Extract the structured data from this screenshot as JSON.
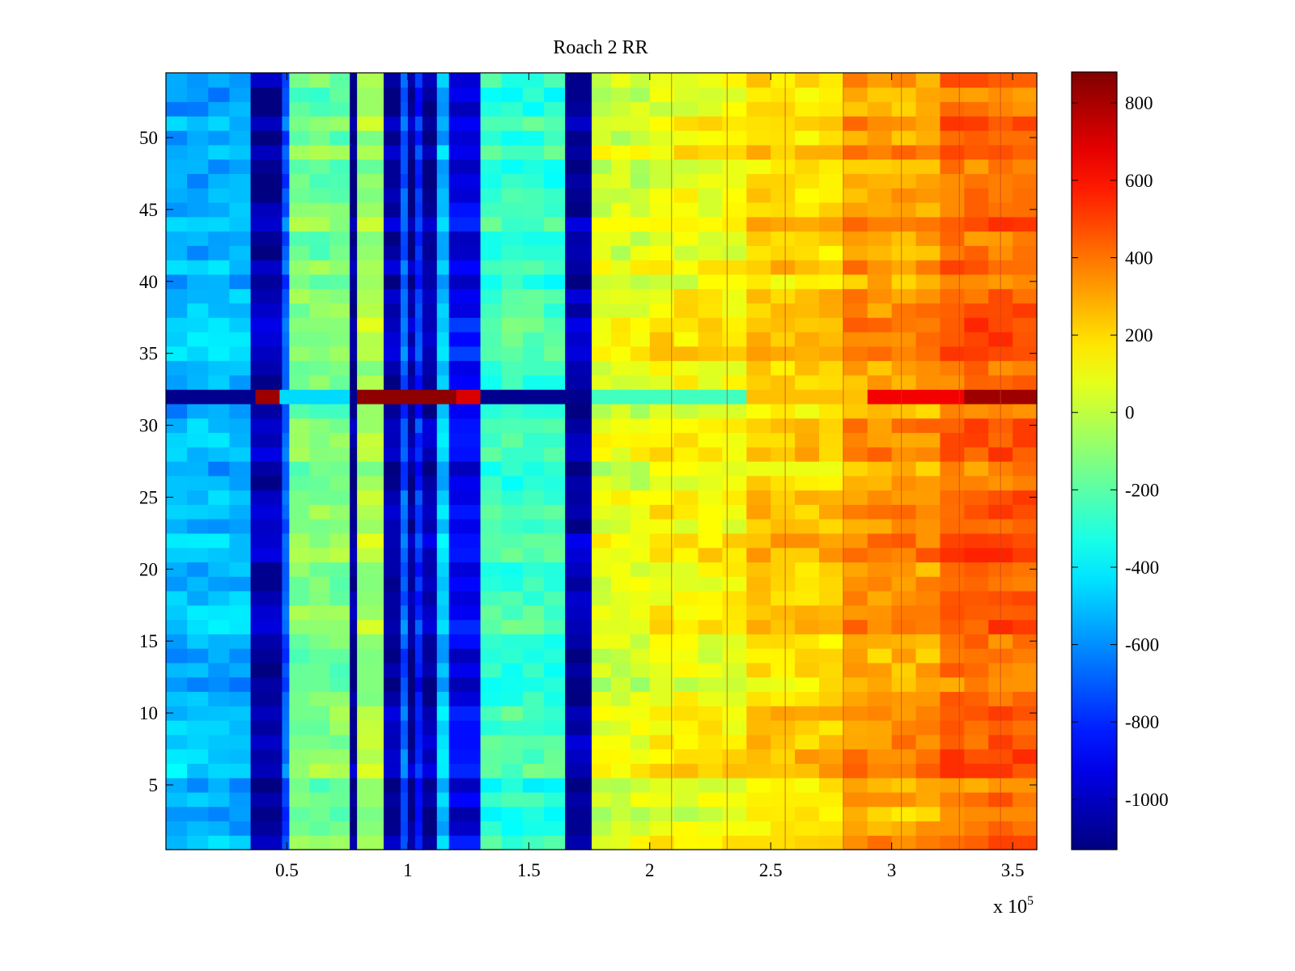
{
  "chart_data": {
    "type": "heatmap",
    "title": "Roach 2 RR",
    "xlabel": "",
    "ylabel": "",
    "x_exponent_label": "x 10",
    "x_exponent_power": "5",
    "xlim": [
      0,
      360000
    ],
    "ylim": [
      0.5,
      54.5
    ],
    "x_ticks": [
      50000,
      100000,
      150000,
      200000,
      250000,
      300000,
      350000
    ],
    "x_tick_labels": [
      "0.5",
      "1",
      "1.5",
      "2",
      "2.5",
      "3",
      "3.5"
    ],
    "y_ticks": [
      5,
      10,
      15,
      20,
      25,
      30,
      35,
      40,
      45,
      50
    ],
    "y_tick_labels": [
      "5",
      "10",
      "15",
      "20",
      "25",
      "30",
      "35",
      "40",
      "45",
      "50"
    ],
    "rows": 54,
    "colormap": "jet",
    "clim": [
      -1130,
      880
    ],
    "colorbar_ticks": [
      800,
      600,
      400,
      200,
      0,
      -200,
      -400,
      -600,
      -800,
      -1000
    ],
    "colorbar_tick_labels": [
      "800",
      "600",
      "400",
      "200",
      "0",
      "-200",
      "-400",
      "-600",
      "-800",
      "-1000"
    ],
    "column_profile": [
      {
        "x_start": 0,
        "x_end": 35000,
        "value": -520
      },
      {
        "x_start": 35000,
        "x_end": 48000,
        "value": -1050
      },
      {
        "x_start": 48000,
        "x_end": 51000,
        "value": -700
      },
      {
        "x_start": 51000,
        "x_end": 76000,
        "value": -140
      },
      {
        "x_start": 76000,
        "x_end": 79000,
        "value": -1100
      },
      {
        "x_start": 79000,
        "x_end": 90000,
        "value": -60
      },
      {
        "x_start": 90000,
        "x_end": 97000,
        "value": -1050
      },
      {
        "x_start": 97000,
        "x_end": 100000,
        "value": -700
      },
      {
        "x_start": 100000,
        "x_end": 103000,
        "value": -1080
      },
      {
        "x_start": 103000,
        "x_end": 106000,
        "value": -800
      },
      {
        "x_start": 106000,
        "x_end": 112000,
        "value": -1050
      },
      {
        "x_start": 112000,
        "x_end": 117000,
        "value": -500
      },
      {
        "x_start": 117000,
        "x_end": 130000,
        "value": -900
      },
      {
        "x_start": 130000,
        "x_end": 165000,
        "value": -270
      },
      {
        "x_start": 165000,
        "x_end": 176000,
        "value": -1050
      },
      {
        "x_start": 176000,
        "x_end": 200000,
        "value": 60
      },
      {
        "x_start": 200000,
        "x_end": 240000,
        "value": 120
      },
      {
        "x_start": 240000,
        "x_end": 280000,
        "value": 210
      },
      {
        "x_start": 280000,
        "x_end": 320000,
        "value": 320
      },
      {
        "x_start": 320000,
        "x_end": 360000,
        "value": 420
      }
    ],
    "highlight_row": {
      "y": 32,
      "segments": [
        {
          "x_start": 0,
          "x_end": 37000,
          "value": -1100
        },
        {
          "x_start": 37000,
          "x_end": 47000,
          "value": 820
        },
        {
          "x_start": 47000,
          "x_end": 76000,
          "value": -450
        },
        {
          "x_start": 76000,
          "x_end": 79000,
          "value": -1100
        },
        {
          "x_start": 79000,
          "x_end": 120000,
          "value": 850
        },
        {
          "x_start": 120000,
          "x_end": 130000,
          "value": 700
        },
        {
          "x_start": 130000,
          "x_end": 176000,
          "value": -1100
        },
        {
          "x_start": 176000,
          "x_end": 240000,
          "value": -250
        },
        {
          "x_start": 240000,
          "x_end": 290000,
          "value": 250
        },
        {
          "x_start": 290000,
          "x_end": 330000,
          "value": 650
        },
        {
          "x_start": 330000,
          "x_end": 360000,
          "value": 820
        }
      ]
    }
  }
}
